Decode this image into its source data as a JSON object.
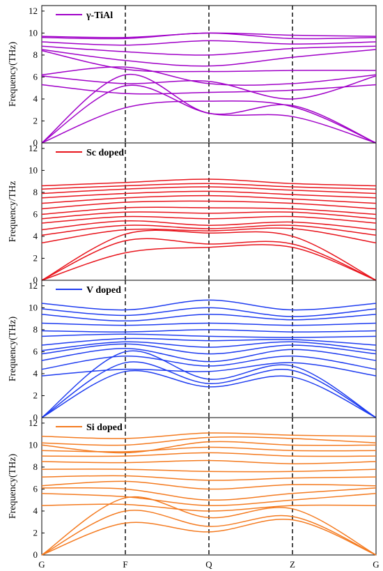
{
  "chart_data": {
    "type": "line",
    "x_ticks": [
      "G",
      "F",
      "Q",
      "Z",
      "G"
    ],
    "panels": [
      {
        "legend": "γ-TiAl",
        "ylabel": "Frequency(THz)",
        "ylim": [
          0,
          12.5
        ],
        "yticks": [
          0,
          2,
          4,
          6,
          8,
          10,
          12
        ],
        "color": "#a000c8",
        "bands": [
          [
            0,
            3.2,
            3.8,
            3.3,
            0
          ],
          [
            0,
            5.2,
            2.7,
            2.4,
            0
          ],
          [
            0,
            6.2,
            2.7,
            3.4,
            0
          ],
          [
            5.3,
            4.5,
            4.6,
            4.8,
            5.3
          ],
          [
            6.1,
            5.4,
            5.6,
            4.0,
            6.1
          ],
          [
            6.2,
            6.9,
            5.4,
            5.4,
            6.2
          ],
          [
            8.4,
            6.7,
            6.5,
            6.6,
            6.6
          ],
          [
            8.5,
            7.5,
            7.0,
            7.8,
            8.5
          ],
          [
            8.8,
            8.3,
            8.0,
            8.6,
            8.8
          ],
          [
            9.2,
            8.9,
            9.3,
            9.0,
            9.2
          ],
          [
            9.6,
            9.5,
            10.0,
            9.5,
            9.6
          ],
          [
            9.7,
            9.6,
            10.0,
            9.8,
            9.7
          ]
        ]
      },
      {
        "legend": "Sc doped",
        "ylabel": "Frequency/THz",
        "ylim": [
          0,
          12.5
        ],
        "yticks": [
          0,
          2,
          4,
          6,
          8,
          10,
          12
        ],
        "color": "#e8141c",
        "bands": [
          [
            0,
            2.5,
            3.0,
            3.0,
            0
          ],
          [
            0,
            3.6,
            3.3,
            3.3,
            0
          ],
          [
            0,
            4.2,
            4.3,
            4.0,
            0
          ],
          [
            3.4,
            4.6,
            4.5,
            4.7,
            3.4
          ],
          [
            4.1,
            5.0,
            4.7,
            5.0,
            4.1
          ],
          [
            4.6,
            5.4,
            5.0,
            5.3,
            4.6
          ],
          [
            5.2,
            5.8,
            5.6,
            5.8,
            5.2
          ],
          [
            5.6,
            6.2,
            6.1,
            6.2,
            5.6
          ],
          [
            6.0,
            6.6,
            6.6,
            6.5,
            6.0
          ],
          [
            6.5,
            7.1,
            7.2,
            7.0,
            6.5
          ],
          [
            7.0,
            7.5,
            7.7,
            7.4,
            7.0
          ],
          [
            7.5,
            7.9,
            8.1,
            7.8,
            7.5
          ],
          [
            7.9,
            8.3,
            8.5,
            8.2,
            7.9
          ],
          [
            8.3,
            8.6,
            8.8,
            8.5,
            8.3
          ],
          [
            8.6,
            8.9,
            9.2,
            8.8,
            8.6
          ]
        ]
      },
      {
        "legend": "V doped",
        "ylabel": "Frequency(THz)",
        "ylim": [
          0,
          12.5
        ],
        "yticks": [
          0,
          2,
          4,
          6,
          8,
          10,
          12
        ],
        "color": "#1e3cf0",
        "bands": [
          [
            0,
            4.2,
            2.8,
            3.7,
            0
          ],
          [
            0,
            5.0,
            3.1,
            4.3,
            0
          ],
          [
            0,
            6.0,
            3.5,
            4.7,
            0
          ],
          [
            3.8,
            4.4,
            4.2,
            5.0,
            3.8
          ],
          [
            4.4,
            5.6,
            4.7,
            5.6,
            4.4
          ],
          [
            5.2,
            6.3,
            5.1,
            6.2,
            5.2
          ],
          [
            5.8,
            6.7,
            5.8,
            6.6,
            5.8
          ],
          [
            6.1,
            6.9,
            6.4,
            6.9,
            6.1
          ],
          [
            6.6,
            7.2,
            7.0,
            7.1,
            6.6
          ],
          [
            7.4,
            7.6,
            7.4,
            7.3,
            7.4
          ],
          [
            7.9,
            7.8,
            8.0,
            7.8,
            7.9
          ],
          [
            8.6,
            8.4,
            8.6,
            8.4,
            8.6
          ],
          [
            9.4,
            8.8,
            9.4,
            8.9,
            9.4
          ],
          [
            9.9,
            9.3,
            10.0,
            9.2,
            9.9
          ],
          [
            10.4,
            9.8,
            10.7,
            9.8,
            10.4
          ]
        ]
      },
      {
        "legend": "Si doped",
        "ylabel": "Frequency(THz)",
        "ylim": [
          0,
          12.5
        ],
        "yticks": [
          0,
          2,
          4,
          6,
          8,
          10,
          12
        ],
        "color": "#f47a1f",
        "bands": [
          [
            0,
            2.9,
            2.1,
            3.2,
            0
          ],
          [
            0,
            4.0,
            2.6,
            3.5,
            0
          ],
          [
            0,
            5.2,
            3.4,
            4.2,
            0
          ],
          [
            4.5,
            4.6,
            4.0,
            4.5,
            4.5
          ],
          [
            5.6,
            5.3,
            4.5,
            5.0,
            5.6
          ],
          [
            6.1,
            6.0,
            5.0,
            5.6,
            6.1
          ],
          [
            6.3,
            6.7,
            6.0,
            6.4,
            6.3
          ],
          [
            7.1,
            7.2,
            6.8,
            7.0,
            7.1
          ],
          [
            7.8,
            7.8,
            7.6,
            7.6,
            7.8
          ],
          [
            8.5,
            8.4,
            8.6,
            8.3,
            8.5
          ],
          [
            9.0,
            9.0,
            9.3,
            9.0,
            9.0
          ],
          [
            9.5,
            9.4,
            9.8,
            9.5,
            9.5
          ],
          [
            10.0,
            9.3,
            10.3,
            10.0,
            10.0
          ],
          [
            10.2,
            10.0,
            10.7,
            10.6,
            10.2
          ],
          [
            10.8,
            10.6,
            11.1,
            10.9,
            10.8
          ]
        ]
      }
    ]
  }
}
